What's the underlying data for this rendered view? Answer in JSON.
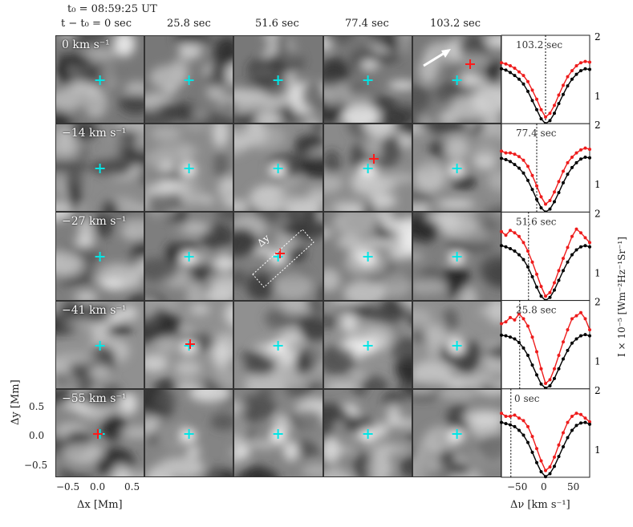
{
  "header": {
    "t0": "t₀ = 08:59:25 UT",
    "t_minus_t0": "t − t₀ = 0 sec",
    "times": [
      "25.8 sec",
      "51.6 sec",
      "77.4 sec",
      "103.2 sec"
    ]
  },
  "rows": [
    {
      "velocity": "0 km s⁻¹",
      "profile_time": "103.2 sec",
      "vline": 0
    },
    {
      "velocity": "−14 km s⁻¹",
      "profile_time": "77.4 sec",
      "vline": -14
    },
    {
      "velocity": "−27 km s⁻¹",
      "profile_time": "51.6 sec",
      "vline": -27
    },
    {
      "velocity": "−41 km s⁻¹",
      "profile_time": "25.8 sec",
      "vline": -41
    },
    {
      "velocity": "−55 km s⁻¹",
      "profile_time": "0 sec",
      "vline": -55
    }
  ],
  "red_markers": [
    {
      "row": 0,
      "col": 4
    },
    {
      "row": 1,
      "col": 3
    },
    {
      "row": 2,
      "col": 2
    },
    {
      "row": 3,
      "col": 1
    },
    {
      "row": 4,
      "col": 0
    }
  ],
  "box_label": "Δy",
  "axes": {
    "x_label": "Δx [Mm]",
    "y_label": "Δy [Mm]",
    "x_ticks": [
      "−0.5",
      "0.0",
      "0.5"
    ],
    "y_ticks": [
      "0.5",
      "0.0",
      "−0.5"
    ],
    "profile_x_label": "Δν [km s⁻¹]",
    "profile_x_ticks": [
      "−50",
      "0",
      "50"
    ],
    "profile_y_label": "I × 10⁻⁵ [Wm⁻²Hz⁻¹Sr⁻¹]",
    "profile_y_ticks": [
      "2",
      "1"
    ]
  },
  "colors": {
    "cyan_marker": "#00e5e5",
    "red_marker": "#ff1a1a",
    "profile_red": "#ee1c1c",
    "profile_black": "#000000"
  },
  "chart_data": {
    "type": "line",
    "xlabel": "Δν [km s⁻¹]",
    "ylabel": "I × 10⁻⁵ [Wm⁻²Hz⁻¹Sr⁻¹]",
    "xlim": [
      -70,
      70
    ],
    "ylim": [
      0.55,
      2.0
    ],
    "x": [
      -70,
      -63,
      -56,
      -49,
      -42,
      -35,
      -28,
      -21,
      -14,
      -7,
      0,
      7,
      14,
      21,
      28,
      35,
      42,
      49,
      56,
      63,
      70
    ],
    "panels": [
      {
        "title": "103.2 sec",
        "series": [
          {
            "values": [
              1.55,
              1.53,
              1.5,
              1.46,
              1.4,
              1.34,
              1.24,
              1.1,
              0.95,
              0.78,
              0.66,
              0.72,
              0.85,
              1.02,
              1.18,
              1.32,
              1.42,
              1.5,
              1.55,
              1.57,
              1.56
            ]
          },
          {
            "values": [
              1.45,
              1.43,
              1.39,
              1.34,
              1.28,
              1.2,
              1.08,
              0.93,
              0.78,
              0.63,
              0.55,
              0.6,
              0.72,
              0.88,
              1.03,
              1.17,
              1.28,
              1.36,
              1.42,
              1.45,
              1.44
            ]
          }
        ]
      },
      {
        "title": "77.4 sec",
        "series": [
          {
            "values": [
              1.55,
              1.52,
              1.52,
              1.5,
              1.46,
              1.4,
              1.3,
              1.15,
              0.98,
              0.8,
              0.68,
              0.74,
              0.88,
              1.05,
              1.22,
              1.36,
              1.45,
              1.52,
              1.57,
              1.6,
              1.58
            ]
          },
          {
            "values": [
              1.43,
              1.41,
              1.38,
              1.33,
              1.27,
              1.19,
              1.07,
              0.92,
              0.76,
              0.62,
              0.55,
              0.6,
              0.72,
              0.87,
              1.03,
              1.17,
              1.28,
              1.36,
              1.42,
              1.45,
              1.44
            ]
          }
        ]
      },
      {
        "title": "51.6 sec",
        "series": [
          {
            "values": [
              1.68,
              1.62,
              1.7,
              1.66,
              1.6,
              1.5,
              1.36,
              1.18,
              0.98,
              0.78,
              0.62,
              0.68,
              0.84,
              1.04,
              1.24,
              1.42,
              1.6,
              1.72,
              1.66,
              1.58,
              1.5
            ]
          },
          {
            "values": [
              1.45,
              1.43,
              1.4,
              1.36,
              1.3,
              1.22,
              1.1,
              0.94,
              0.77,
              0.62,
              0.55,
              0.6,
              0.72,
              0.88,
              1.04,
              1.18,
              1.3,
              1.38,
              1.43,
              1.45,
              1.43
            ]
          }
        ]
      },
      {
        "title": "25.8 sec",
        "series": [
          {
            "values": [
              1.62,
              1.65,
              1.72,
              1.68,
              1.78,
              1.7,
              1.58,
              1.4,
              1.16,
              0.88,
              0.64,
              0.7,
              0.88,
              1.1,
              1.32,
              1.52,
              1.7,
              1.75,
              1.8,
              1.7,
              1.52
            ]
          },
          {
            "values": [
              1.43,
              1.42,
              1.4,
              1.37,
              1.31,
              1.22,
              1.1,
              0.94,
              0.78,
              0.63,
              0.56,
              0.6,
              0.72,
              0.88,
              1.04,
              1.18,
              1.3,
              1.37,
              1.42,
              1.44,
              1.42
            ]
          }
        ]
      },
      {
        "title": "0 sec",
        "series": [
          {
            "values": [
              1.6,
              1.55,
              1.55,
              1.57,
              1.52,
              1.48,
              1.38,
              1.22,
              1.02,
              0.82,
              0.66,
              0.72,
              0.88,
              1.08,
              1.28,
              1.45,
              1.55,
              1.6,
              1.58,
              1.52,
              1.46
            ]
          },
          {
            "values": [
              1.45,
              1.43,
              1.41,
              1.38,
              1.32,
              1.24,
              1.12,
              0.96,
              0.79,
              0.64,
              0.56,
              0.61,
              0.73,
              0.89,
              1.05,
              1.2,
              1.32,
              1.4,
              1.44,
              1.45,
              1.42
            ]
          }
        ]
      }
    ]
  }
}
